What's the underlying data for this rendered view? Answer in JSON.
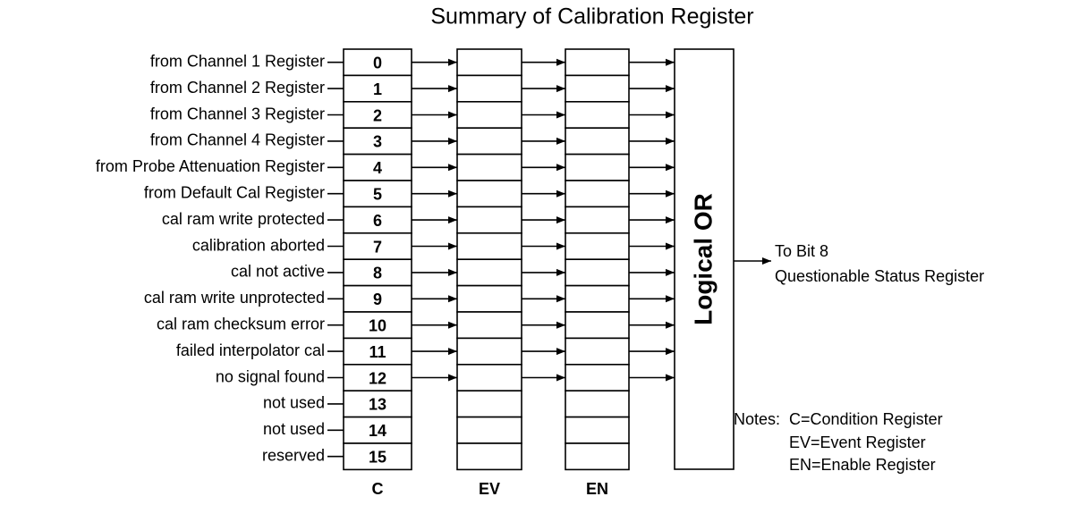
{
  "title": "Summary of Calibration Register",
  "inputs": [
    "from Channel 1 Register",
    "from Channel 2 Register",
    "from Channel 3 Register",
    "from Channel 4 Register",
    "from Probe Attenuation Register",
    "from Default Cal Register",
    "cal ram write protected",
    "calibration aborted",
    "cal not active",
    "cal ram write unprotected",
    "cal ram checksum error",
    "failed interpolator cal",
    "no signal found",
    "not used",
    "not used",
    "reserved"
  ],
  "bits": [
    "0",
    "1",
    "2",
    "3",
    "4",
    "5",
    "6",
    "7",
    "8",
    "9",
    "10",
    "11",
    "12",
    "13",
    "14",
    "15"
  ],
  "columns": [
    "C",
    "EV",
    "EN"
  ],
  "or_label": "Logical OR",
  "output": [
    "To Bit 8",
    "Questionable Status Register"
  ],
  "notes": {
    "heading": "Notes:",
    "items": [
      "C=Condition Register",
      "EV=Event Register",
      "EN=Enable Register"
    ]
  }
}
